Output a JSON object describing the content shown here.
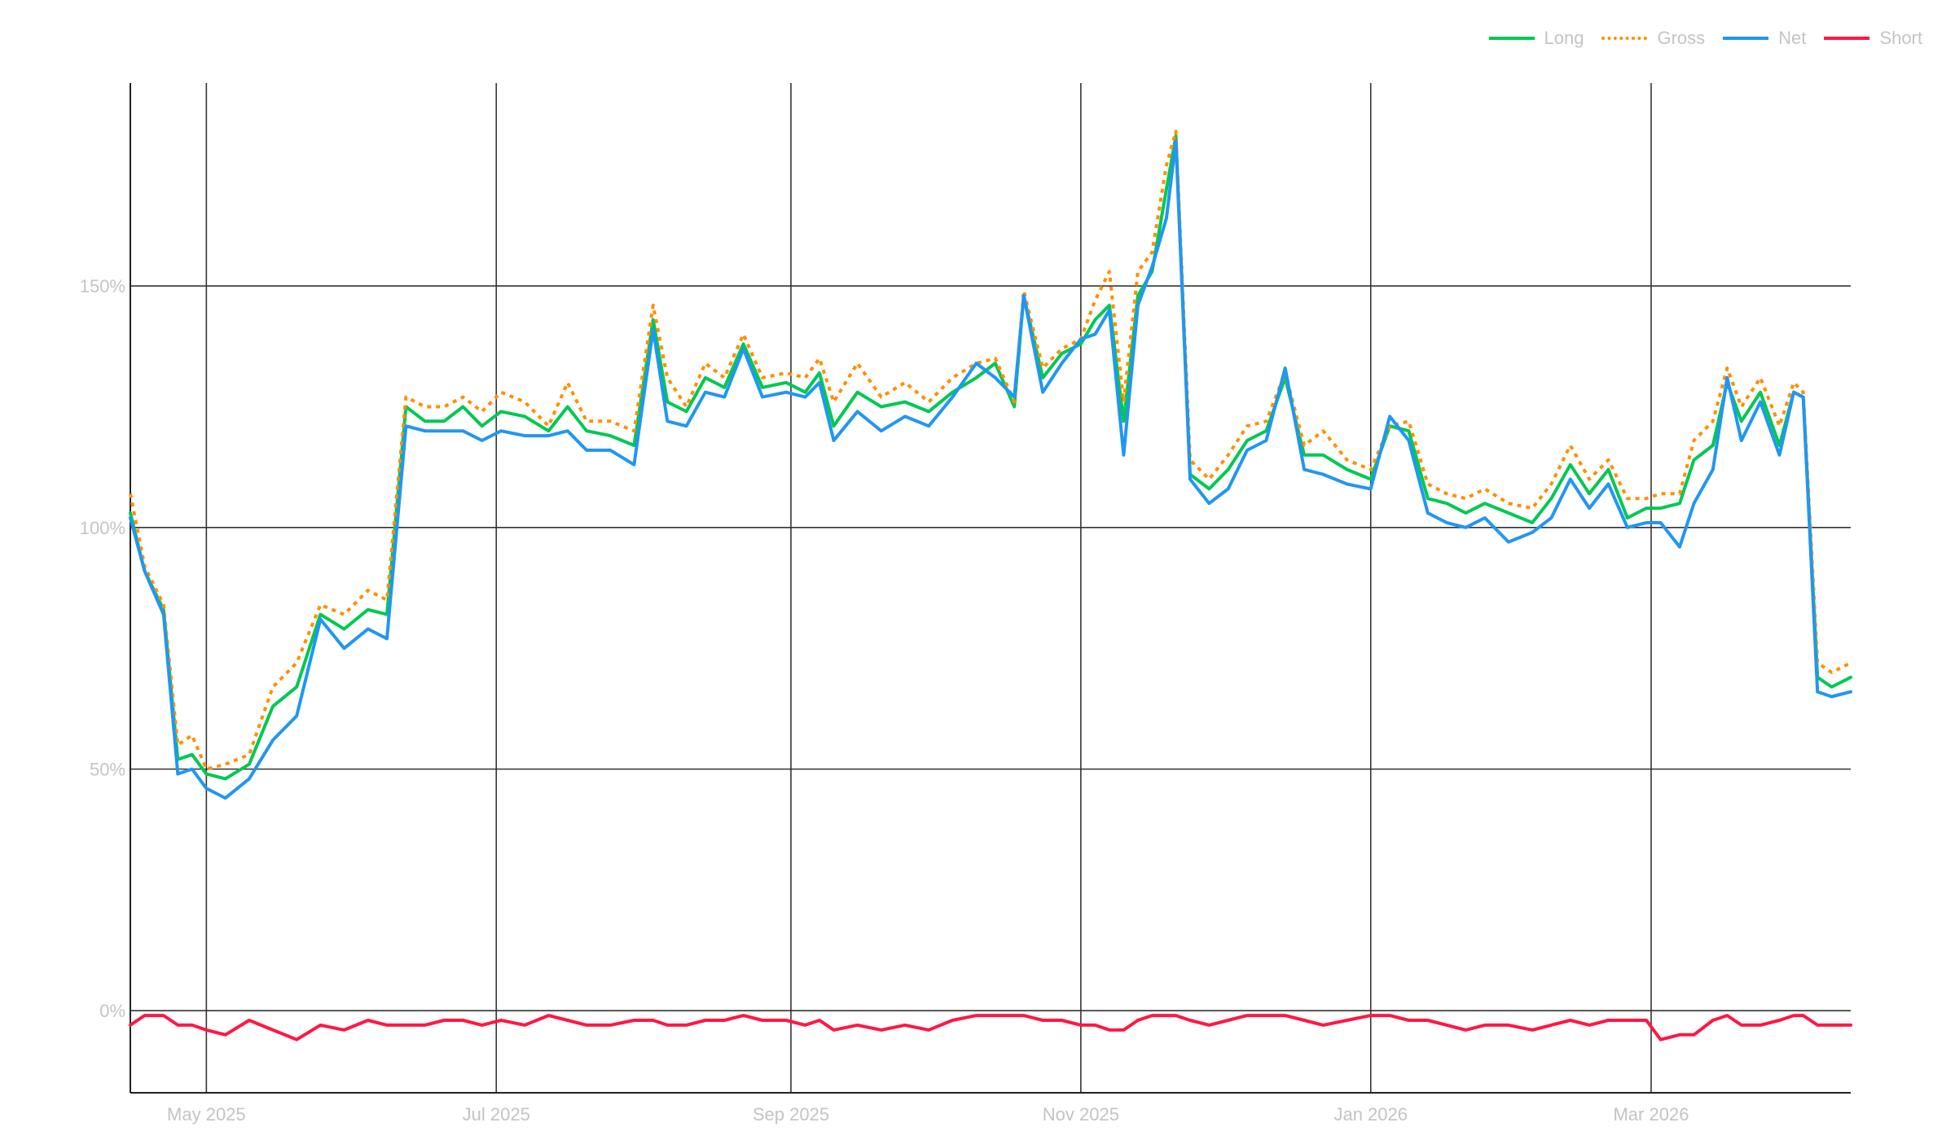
{
  "chart_data": {
    "type": "line",
    "title": "",
    "xlabel": "",
    "ylabel": "",
    "x_range": [
      "2025-04-15",
      "2026-04-12"
    ],
    "ylim": [
      -17,
      192
    ],
    "y_ticks": [
      0,
      50,
      100,
      150
    ],
    "y_tick_labels": [
      "0%",
      "50%",
      "100%",
      "150%"
    ],
    "x_ticks": [
      "2025-05-01",
      "2025-07-01",
      "2025-09-01",
      "2025-11-01",
      "2026-01-01",
      "2026-03-01"
    ],
    "x_tick_labels": [
      "May 2025",
      "Jul 2025",
      "Sep 2025",
      "Nov 2025",
      "Jan 2026",
      "Mar 2026"
    ],
    "grid": true,
    "legend_position": "top-right",
    "x": [
      "2025-04-15",
      "2025-04-18",
      "2025-04-22",
      "2025-04-25",
      "2025-04-28",
      "2025-05-01",
      "2025-05-05",
      "2025-05-10",
      "2025-05-15",
      "2025-05-20",
      "2025-05-25",
      "2025-05-30",
      "2025-06-04",
      "2025-06-08",
      "2025-06-12",
      "2025-06-16",
      "2025-06-20",
      "2025-06-24",
      "2025-06-28",
      "2025-07-02",
      "2025-07-07",
      "2025-07-12",
      "2025-07-16",
      "2025-07-20",
      "2025-07-25",
      "2025-07-30",
      "2025-08-03",
      "2025-08-06",
      "2025-08-10",
      "2025-08-14",
      "2025-08-18",
      "2025-08-22",
      "2025-08-26",
      "2025-08-31",
      "2025-09-04",
      "2025-09-07",
      "2025-09-10",
      "2025-09-15",
      "2025-09-20",
      "2025-09-25",
      "2025-09-30",
      "2025-10-05",
      "2025-10-10",
      "2025-10-14",
      "2025-10-18",
      "2025-10-20",
      "2025-10-24",
      "2025-10-28",
      "2025-11-01",
      "2025-11-04",
      "2025-11-07",
      "2025-11-10",
      "2025-11-13",
      "2025-11-16",
      "2025-11-19",
      "2025-11-21",
      "2025-11-24",
      "2025-11-28",
      "2025-12-02",
      "2025-12-06",
      "2025-12-10",
      "2025-12-14",
      "2025-12-18",
      "2025-12-22",
      "2025-12-27",
      "2026-01-01",
      "2026-01-05",
      "2026-01-09",
      "2026-01-13",
      "2026-01-17",
      "2026-01-21",
      "2026-01-25",
      "2026-01-30",
      "2026-02-04",
      "2026-02-08",
      "2026-02-12",
      "2026-02-16",
      "2026-02-20",
      "2026-02-24",
      "2026-02-28",
      "2026-03-03",
      "2026-03-07",
      "2026-03-10",
      "2026-03-14",
      "2026-03-17",
      "2026-03-20",
      "2026-03-24",
      "2026-03-28",
      "2026-03-31",
      "2026-04-02",
      "2026-04-05",
      "2026-04-08",
      "2026-04-12"
    ],
    "series": [
      {
        "name": "Long",
        "color": "#00c853",
        "style": "solid",
        "values": [
          103,
          91,
          83,
          52,
          53,
          49,
          48,
          51,
          63,
          67,
          82,
          79,
          83,
          82,
          125,
          122,
          122,
          125,
          121,
          124,
          123,
          120,
          125,
          120,
          119,
          117,
          143,
          126,
          124,
          131,
          129,
          138,
          129,
          130,
          128,
          132,
          121,
          128,
          125,
          126,
          124,
          128,
          131,
          134,
          125,
          148,
          131,
          136,
          138,
          143,
          146,
          122,
          148,
          153,
          170,
          181,
          111,
          108,
          112,
          118,
          120,
          131,
          115,
          115,
          112,
          110,
          121,
          120,
          106,
          105,
          103,
          105,
          103,
          101,
          106,
          113,
          107,
          112,
          102,
          104,
          104,
          105,
          114,
          117,
          130,
          122,
          128,
          117,
          128,
          127,
          69,
          67,
          69
        ]
      },
      {
        "name": "Gross",
        "color": "#ff8f00",
        "style": "dotted",
        "values": [
          107,
          92,
          84,
          55,
          57,
          50,
          51,
          53,
          67,
          72,
          84,
          82,
          87,
          85,
          127,
          125,
          125,
          127,
          124,
          128,
          126,
          121,
          130,
          122,
          122,
          120,
          146,
          131,
          125,
          134,
          131,
          140,
          131,
          132,
          131,
          135,
          126,
          134,
          127,
          130,
          126,
          131,
          134,
          135,
          126,
          149,
          133,
          137,
          139,
          147,
          153,
          126,
          153,
          157,
          175,
          182,
          114,
          110,
          115,
          121,
          122,
          132,
          117,
          120,
          114,
          112,
          121,
          122,
          109,
          107,
          106,
          108,
          105,
          104,
          109,
          117,
          110,
          114,
          106,
          106,
          107,
          107,
          118,
          122,
          133,
          125,
          131,
          121,
          130,
          128,
          72,
          70,
          72
        ]
      },
      {
        "name": "Net",
        "color": "#2196f3",
        "style": "solid",
        "values": [
          102,
          91,
          82,
          49,
          50,
          46,
          44,
          48,
          56,
          61,
          81,
          75,
          79,
          77,
          121,
          120,
          120,
          120,
          118,
          120,
          119,
          119,
          120,
          116,
          116,
          113,
          141,
          122,
          121,
          128,
          127,
          137,
          127,
          128,
          127,
          130,
          118,
          124,
          120,
          123,
          121,
          127,
          134,
          131,
          127,
          148,
          128,
          134,
          139,
          140,
          145,
          115,
          146,
          154,
          164,
          180,
          110,
          105,
          108,
          116,
          118,
          133,
          112,
          111,
          109,
          108,
          123,
          118,
          103,
          101,
          100,
          102,
          97,
          99,
          102,
          110,
          104,
          109,
          100,
          101,
          101,
          96,
          105,
          112,
          131,
          118,
          126,
          115,
          128,
          127,
          66,
          65,
          66
        ]
      },
      {
        "name": "Short",
        "color": "#ff1744",
        "style": "solid",
        "values": [
          -3,
          -1,
          -1,
          -3,
          -3,
          -4,
          -5,
          -2,
          -4,
          -6,
          -3,
          -4,
          -2,
          -3,
          -3,
          -3,
          -2,
          -2,
          -3,
          -2,
          -3,
          -1,
          -2,
          -3,
          -3,
          -2,
          -2,
          -3,
          -3,
          -2,
          -2,
          -1,
          -2,
          -2,
          -3,
          -2,
          -4,
          -3,
          -4,
          -3,
          -4,
          -2,
          -1,
          -1,
          -1,
          -1,
          -2,
          -2,
          -3,
          -3,
          -4,
          -4,
          -2,
          -1,
          -1,
          -1,
          -2,
          -3,
          -2,
          -1,
          -1,
          -1,
          -2,
          -3,
          -2,
          -1,
          -1,
          -2,
          -2,
          -3,
          -4,
          -3,
          -3,
          -4,
          -3,
          -2,
          -3,
          -2,
          -2,
          -2,
          -6,
          -5,
          -5,
          -2,
          -1,
          -3,
          -3,
          -2,
          -1,
          -1,
          -3,
          -3,
          -3
        ]
      }
    ]
  }
}
